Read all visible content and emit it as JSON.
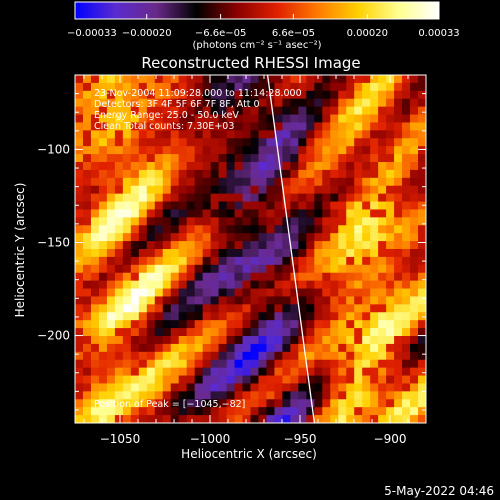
{
  "chart_data": {
    "type": "heatmap",
    "title": "Reconstructed RHESSI Image",
    "xlabel": "Heliocentric X (arcsec)",
    "ylabel": "Heliocentric Y (arcsec)",
    "xlim": [
      -1075,
      -880
    ],
    "ylim": [
      -247,
      -60
    ],
    "x_ticks": [
      {
        "value": -1050,
        "label": "−1050"
      },
      {
        "value": -1000,
        "label": "−1000"
      },
      {
        "value": -950,
        "label": "−950"
      },
      {
        "value": -900,
        "label": "−900"
      }
    ],
    "y_ticks": [
      {
        "value": -100,
        "label": "−100"
      },
      {
        "value": -150,
        "label": "−150"
      },
      {
        "value": -200,
        "label": "−200"
      }
    ],
    "colorbar": {
      "min": -0.00033,
      "max": 0.00033,
      "ticks": [
        {
          "value": -0.00033,
          "label": "−0.00033"
        },
        {
          "value": -0.0002,
          "label": "−0.00020"
        },
        {
          "value": -6.6e-05,
          "label": "−6.6e−05"
        },
        {
          "value": 6.6e-05,
          "label": "6.6e−05"
        },
        {
          "value": 0.0002,
          "label": "0.00020"
        },
        {
          "value": 0.00033,
          "label": "0.00033"
        }
      ],
      "unit_label": "(photons cm⁻² s⁻¹ asec⁻²)",
      "colors": [
        "#0000ff",
        "#5a2bd0",
        "#6a2a8a",
        "#000000",
        "#8a0000",
        "#e02000",
        "#ff7a00",
        "#ffd000",
        "#ffff90",
        "#ffffff"
      ]
    },
    "annotations": [
      "23-Nov-2004 11:09:28.000 to 11:14:28.000",
      "Detectors: 3F 4F 5F 6F 7F 8F, Att 0",
      "Energy Range: 25.0 - 50.0 keV",
      "Clean   Total counts: 7.30E+03"
    ],
    "peak_label": "Position of Peak = [−1045,−82]",
    "peak": {
      "x": -1045,
      "y": -82
    },
    "limb_line": [
      {
        "x": -968,
        "y": -60
      },
      {
        "x": -942,
        "y": -247
      }
    ],
    "grid": false,
    "legend": "none"
  },
  "footer": {
    "timestamp": "5-May-2022 04:46"
  }
}
